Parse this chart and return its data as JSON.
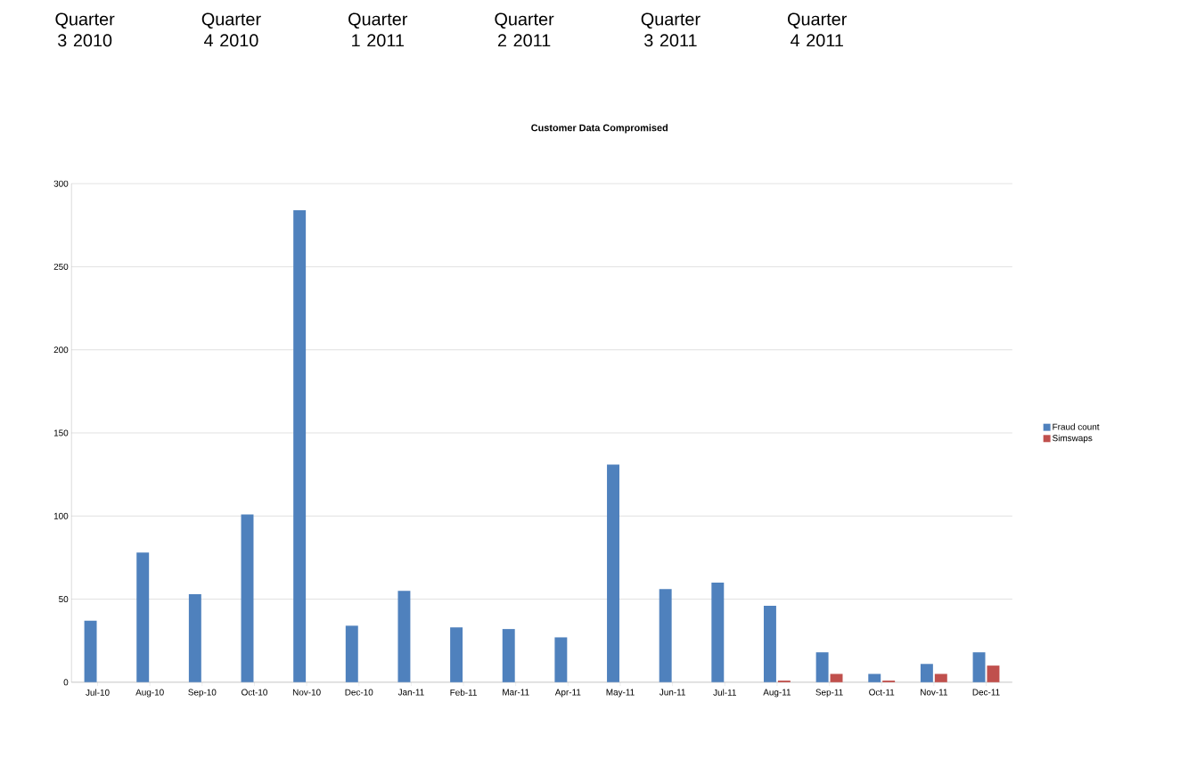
{
  "chart_data": {
    "type": "bar",
    "title": "Customer Data Compromised",
    "categories": [
      "Jul-10",
      "Aug-10",
      "Sep-10",
      "Oct-10",
      "Nov-10",
      "Dec-10",
      "Jan-11",
      "Feb-11",
      "Mar-11",
      "Apr-11",
      "May-11",
      "Jun-11",
      "Jul-11",
      "Aug-11",
      "Sep-11",
      "Oct-11",
      "Nov-11",
      "Dec-11"
    ],
    "series": [
      {
        "name": "Fraud count",
        "color": "#4f81bd",
        "values": [
          37,
          78,
          53,
          101,
          284,
          34,
          55,
          33,
          32,
          27,
          131,
          56,
          60,
          46,
          18,
          5,
          11,
          18
        ]
      },
      {
        "name": "Simswaps",
        "color": "#c0504d",
        "values": [
          null,
          null,
          null,
          null,
          null,
          null,
          null,
          null,
          null,
          null,
          null,
          null,
          null,
          1,
          5,
          1,
          5,
          10
        ]
      }
    ],
    "ylim": [
      0,
      300
    ],
    "yticks": [
      0,
      50,
      100,
      150,
      200,
      250,
      300
    ],
    "grid": "y",
    "legend": "right",
    "annotations": [
      "Quarter 3 2010",
      "Quarter 4 2010",
      "Quarter 1 2011",
      "Quarter 2 2011",
      "Quarter 3 2011",
      "Quarter 4 2011"
    ]
  }
}
